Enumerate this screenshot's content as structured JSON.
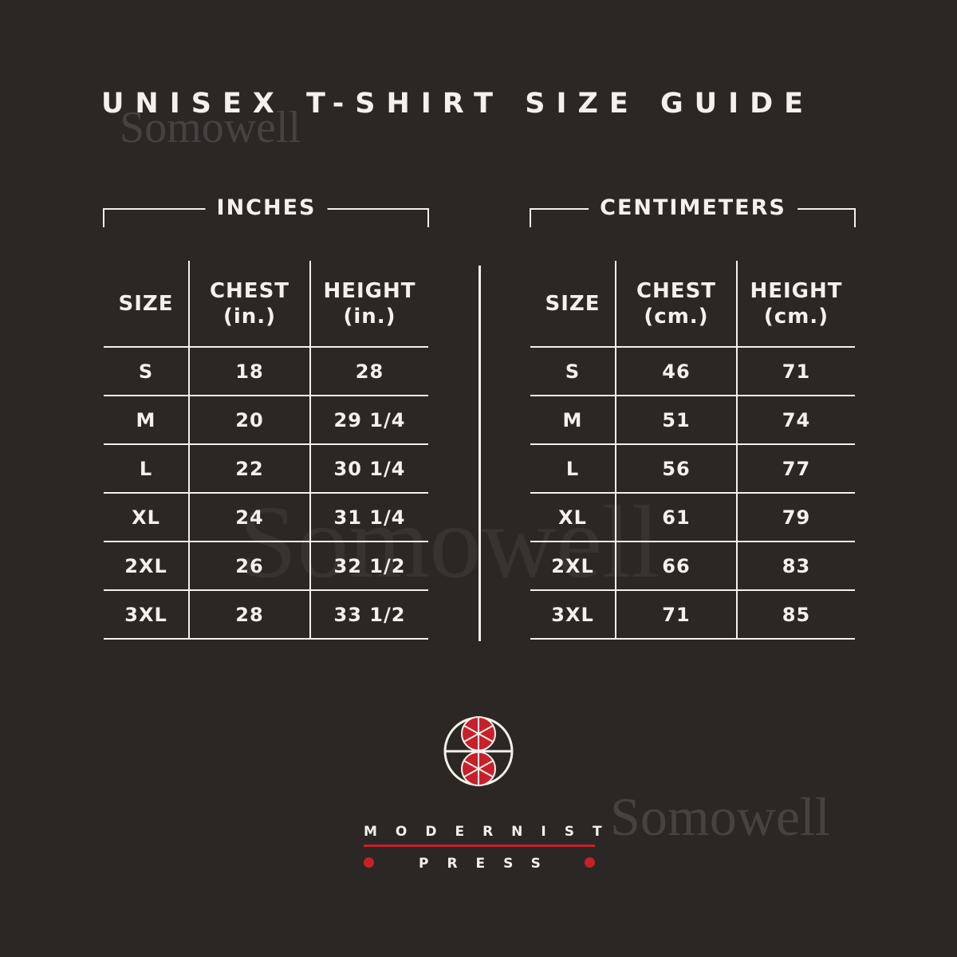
{
  "title": "UNISEX T-SHIRT SIZE GUIDE",
  "watermark": "Somowell",
  "inches": {
    "label": "INCHES",
    "headers": [
      [
        "SIZE",
        ""
      ],
      [
        "CHEST",
        "(in.)"
      ],
      [
        "HEIGHT",
        "(in.)"
      ]
    ],
    "rows": [
      [
        "S",
        "18",
        "28"
      ],
      [
        "M",
        "20",
        "29 1/4"
      ],
      [
        "L",
        "22",
        "30 1/4"
      ],
      [
        "XL",
        "24",
        "31 1/4"
      ],
      [
        "2XL",
        "26",
        "32 1/2"
      ],
      [
        "3XL",
        "28",
        "33 1/2"
      ]
    ]
  },
  "centimeters": {
    "label": "CENTIMETERS",
    "headers": [
      [
        "SIZE",
        ""
      ],
      [
        "CHEST",
        "(cm.)"
      ],
      [
        "HEIGHT",
        "(cm.)"
      ]
    ],
    "rows": [
      [
        "S",
        "46",
        "71"
      ],
      [
        "M",
        "51",
        "74"
      ],
      [
        "L",
        "56",
        "77"
      ],
      [
        "XL",
        "61",
        "79"
      ],
      [
        "2XL",
        "66",
        "83"
      ],
      [
        "3XL",
        "71",
        "85"
      ]
    ]
  },
  "brand": {
    "line1": "MODERNIST",
    "line2": "PRESS",
    "accent": "#c8202a",
    "logo": "modernist-press-logo"
  }
}
